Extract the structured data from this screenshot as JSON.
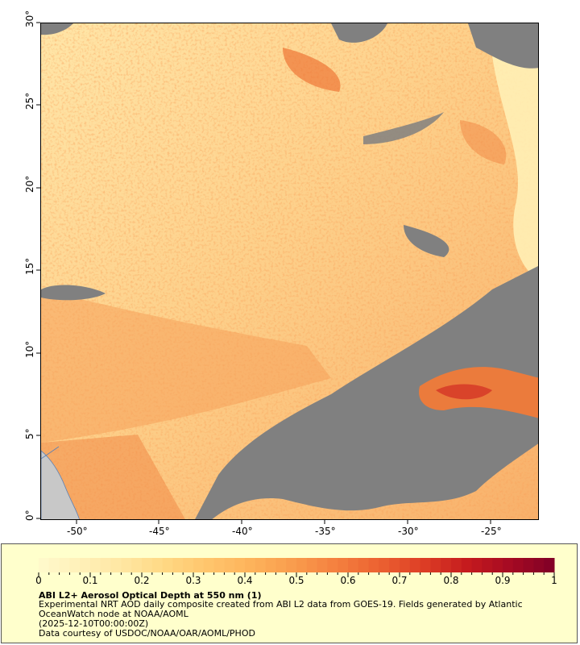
{
  "map": {
    "lat_ticks": [
      "30°",
      "25°",
      "20°",
      "15°",
      "10°",
      "5°",
      "0°"
    ],
    "lon_ticks": [
      "-50°",
      "-45°",
      "-40°",
      "-35°",
      "-30°",
      "-25°"
    ],
    "lon_range": [
      -52,
      -22
    ],
    "lat_range": [
      0,
      30
    ],
    "no_data_color": "#808080",
    "land_color": "#c8c8c8"
  },
  "colorbar": {
    "ticks": [
      "0",
      "0.1",
      "0.2",
      "0.3",
      "0.4",
      "0.5",
      "0.6",
      "0.7",
      "0.8",
      "0.9",
      "1"
    ],
    "range": [
      0,
      1
    ],
    "colors": [
      "#fffacc",
      "#fff0b8",
      "#ffe6a0",
      "#ffd782",
      "#ffc46b",
      "#fdb25a",
      "#f99a4c",
      "#f47e3e",
      "#eb5f30",
      "#dc3c25",
      "#c41a1e",
      "#a50a23",
      "#800026"
    ]
  },
  "legend": {
    "title": "ABI L2+ Aerosol Optical Depth at 550 nm (1)",
    "line1": "Experimental NRT AOD daily composite created from ABI L2 data from GOES-19. Fields generated by Atlantic",
    "line2": "OceanWatch node at NOAA/AOML",
    "line3": "(2025-12-10T00:00:00Z)",
    "line4": "Data courtesy of USDOC/NOAA/OAR/AOML/PHOD"
  }
}
